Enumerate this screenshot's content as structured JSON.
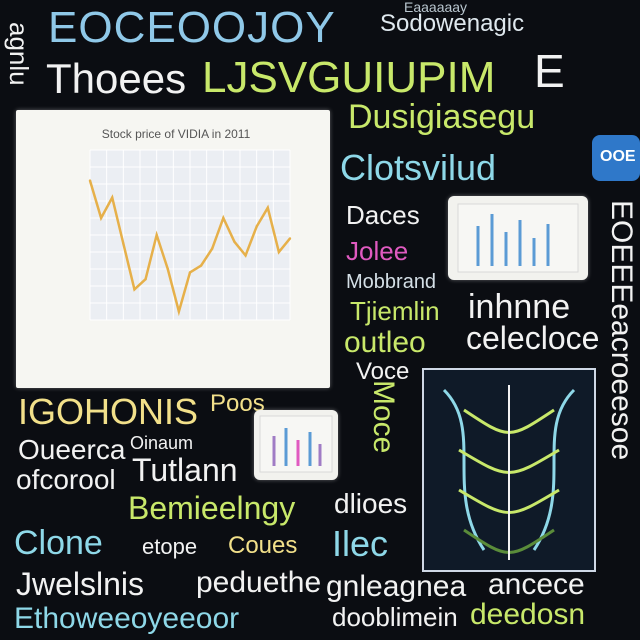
{
  "colors": {
    "background": "#0b0d12",
    "chart_line": "#e6b04a",
    "white": "#f2f2f2",
    "lime": "#c8e86a",
    "cyan": "#8ed8e8",
    "yellow": "#f2e08a",
    "magenta": "#e05ac0"
  },
  "texts": {
    "t1": "EOCEOOJOY",
    "t2": "Thoees",
    "t3": "LJSVGUIUPIM",
    "t4": "Sodowenagic",
    "t5": "Eaaaaaay",
    "t6": "agnlu",
    "t7": "Dusigiasegu",
    "t8": "Clotsvilud",
    "t9": "Daces",
    "t10": "Jolee",
    "t11": "Mobbrand",
    "t12": "Tjiemlin",
    "t13": "outleo",
    "t14": "inhnne",
    "t15": "celecloce",
    "t16": "Voce",
    "t17": "IGOHONIS",
    "t18": "Poos",
    "t19": "Oueerca",
    "t20": "Oinaum",
    "t21": "Tutlann",
    "t22": "ofcorool",
    "t23": "Bemieelngy",
    "t24": "Clone",
    "t25": "etope",
    "t26": "Coues",
    "t27": "Jwelslnis",
    "t28": "peduethe",
    "t29": "dlioes",
    "t30": "Ilec",
    "t31": "gnleagnea",
    "t32": "ancece",
    "t33": "Ethoweeoyeeoor",
    "t34": "dooblimein",
    "t35": "deedosn",
    "t36": "EOEEEeacroeesoe",
    "t37": "E",
    "t38": "Moce",
    "pill": "OOE"
  },
  "chart_data": {
    "type": "line",
    "title": "Stock price of VIDIA in 2011",
    "xlabel": "",
    "ylabel": "",
    "x": [
      1,
      2,
      3,
      4,
      5,
      6,
      7,
      8,
      9,
      10,
      11,
      12,
      13,
      14,
      15,
      16,
      17,
      18,
      19
    ],
    "values": [
      82,
      60,
      72,
      45,
      18,
      24,
      50,
      30,
      5,
      28,
      32,
      42,
      60,
      46,
      38,
      55,
      66,
      40,
      48
    ],
    "ylim": [
      0,
      100
    ],
    "grid": true,
    "color": "#e6b04a"
  }
}
